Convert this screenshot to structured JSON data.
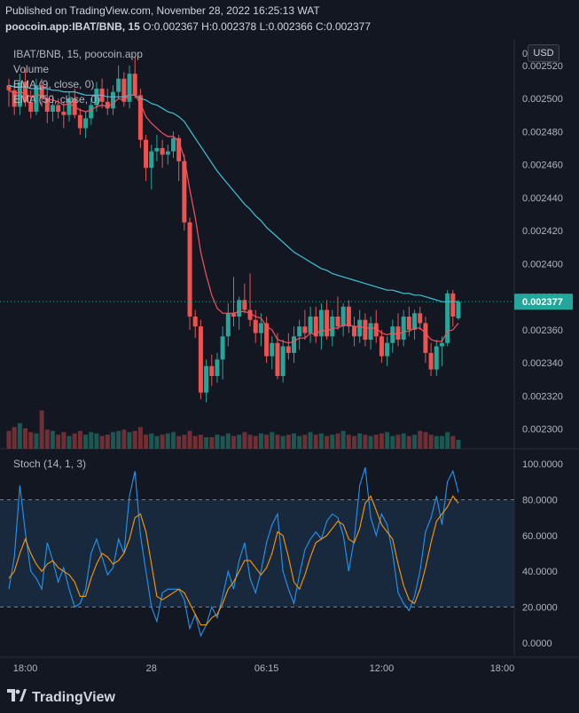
{
  "header": {
    "published": "Published on TradingView.com, November 28, 2022 16:25:13 WAT",
    "symbol_full": "poocoin.app:IBAT/BNB, 15",
    "ohlc": "O:0.002367 H:0.002378 L:0.002366 C:0.002377"
  },
  "legend": {
    "title": "IBAT/BNB, 15, poocoin.app",
    "volume": "Volume",
    "ema9": "EMA (9, close, 0)",
    "ema50": "EMA (50, close, 0)",
    "stoch": "Stoch (14, 1, 3)"
  },
  "currency_button": "USD",
  "price_tag": "0.002377",
  "footer": {
    "brand": "TradingView"
  },
  "colors": {
    "background": "#131722",
    "up": "#26a69a",
    "down": "#ef5350",
    "ema9": "#f7525f",
    "ema50": "#40c4d8",
    "stoch_k": "#2196f3",
    "stoch_d": "#ff9800",
    "stoch_band": "#1e3550"
  },
  "chart_data": [
    {
      "type": "candlestick",
      "title": "IBAT/BNB, 15, poocoin.app",
      "y_ticks": [
        "0",
        "0.002520",
        "0.002500",
        "0.002480",
        "0.002460",
        "0.002440",
        "0.002420",
        "0.002400",
        "0.002380",
        "0.002360",
        "0.002340",
        "0.002320",
        "0.002300"
      ],
      "ylim": [
        0.002288,
        0.002536
      ],
      "x_ticks": [
        "18:00",
        "28",
        "06:15",
        "12:00",
        "18:00"
      ],
      "last_price": 0.002377,
      "candles": [
        [
          0.002508,
          0.002512,
          0.002495,
          0.002505
        ],
        [
          0.002505,
          0.00251,
          0.00249,
          0.002495
        ],
        [
          0.002495,
          0.002515,
          0.00249,
          0.00251
        ],
        [
          0.00251,
          0.002518,
          0.002495,
          0.002498
        ],
        [
          0.002498,
          0.002505,
          0.002488,
          0.002492
        ],
        [
          0.002492,
          0.002512,
          0.00249,
          0.002508
        ],
        [
          0.002508,
          0.002512,
          0.002495,
          0.0025
        ],
        [
          0.0025,
          0.002508,
          0.002485,
          0.002492
        ],
        [
          0.002492,
          0.002502,
          0.002486,
          0.002496
        ],
        [
          0.002496,
          0.0025,
          0.002488,
          0.002492
        ],
        [
          0.002492,
          0.002498,
          0.002482,
          0.00249
        ],
        [
          0.00249,
          0.002504,
          0.002486,
          0.0025
        ],
        [
          0.0025,
          0.002506,
          0.002488,
          0.00249
        ],
        [
          0.00249,
          0.002494,
          0.002478,
          0.002482
        ],
        [
          0.002482,
          0.002492,
          0.002476,
          0.002488
        ],
        [
          0.002488,
          0.0025,
          0.002484,
          0.002496
        ],
        [
          0.002496,
          0.00251,
          0.002492,
          0.002506
        ],
        [
          0.002506,
          0.002512,
          0.002494,
          0.002498
        ],
        [
          0.002498,
          0.002506,
          0.00249,
          0.002494
        ],
        [
          0.002494,
          0.002508,
          0.00249,
          0.002504
        ],
        [
          0.002504,
          0.00252,
          0.0025,
          0.002512
        ],
        [
          0.002512,
          0.002516,
          0.002495,
          0.002498
        ],
        [
          0.002498,
          0.00252,
          0.002494,
          0.002515
        ],
        [
          0.002515,
          0.002525,
          0.0025,
          0.002502
        ],
        [
          0.002502,
          0.002506,
          0.00247,
          0.002475
        ],
        [
          0.002475,
          0.002478,
          0.00245,
          0.002458
        ],
        [
          0.002458,
          0.002472,
          0.002445,
          0.002468
        ],
        [
          0.002468,
          0.002478,
          0.002462,
          0.00247
        ],
        [
          0.00247,
          0.002475,
          0.002458,
          0.002466
        ],
        [
          0.002466,
          0.002472,
          0.00246,
          0.002468
        ],
        [
          0.002468,
          0.00248,
          0.002464,
          0.002476
        ],
        [
          0.002476,
          0.002478,
          0.00245,
          0.002462
        ],
        [
          0.002462,
          0.002466,
          0.00242,
          0.002425
        ],
        [
          0.002425,
          0.002428,
          0.00236,
          0.002368
        ],
        [
          0.002368,
          0.002372,
          0.002355,
          0.002362
        ],
        [
          0.002362,
          0.002366,
          0.002318,
          0.002322
        ],
        [
          0.002322,
          0.002342,
          0.002316,
          0.002338
        ],
        [
          0.002338,
          0.002345,
          0.002326,
          0.002332
        ],
        [
          0.002332,
          0.002346,
          0.002328,
          0.002342
        ],
        [
          0.002342,
          0.002362,
          0.00233,
          0.002356
        ],
        [
          0.002356,
          0.002376,
          0.00235,
          0.00237
        ],
        [
          0.00237,
          0.002392,
          0.002362,
          0.002368
        ],
        [
          0.002368,
          0.00238,
          0.00236,
          0.002378
        ],
        [
          0.002378,
          0.002388,
          0.00237,
          0.002372
        ],
        [
          0.002372,
          0.002394,
          0.002362,
          0.002366
        ],
        [
          0.002366,
          0.002372,
          0.002352,
          0.002358
        ],
        [
          0.002358,
          0.00237,
          0.00235,
          0.002364
        ],
        [
          0.002364,
          0.002368,
          0.00234,
          0.002344
        ],
        [
          0.002344,
          0.002356,
          0.002336,
          0.002352
        ],
        [
          0.002352,
          0.002358,
          0.00233,
          0.002332
        ],
        [
          0.002332,
          0.002354,
          0.002328,
          0.00235
        ],
        [
          0.00235,
          0.002358,
          0.002342,
          0.002346
        ],
        [
          0.002346,
          0.002362,
          0.00234,
          0.002356
        ],
        [
          0.002356,
          0.002366,
          0.002348,
          0.002362
        ],
        [
          0.002362,
          0.002372,
          0.002354,
          0.002358
        ],
        [
          0.002358,
          0.002374,
          0.002352,
          0.002368
        ],
        [
          0.002368,
          0.002374,
          0.002352,
          0.002356
        ],
        [
          0.002356,
          0.002376,
          0.002348,
          0.002372
        ],
        [
          0.002372,
          0.002378,
          0.002354,
          0.002356
        ],
        [
          0.002356,
          0.002372,
          0.00235,
          0.002368
        ],
        [
          0.002368,
          0.00238,
          0.00236,
          0.002362
        ],
        [
          0.002362,
          0.002376,
          0.002356,
          0.002374
        ],
        [
          0.002374,
          0.002378,
          0.002358,
          0.002362
        ],
        [
          0.002362,
          0.002368,
          0.00235,
          0.002356
        ],
        [
          0.002356,
          0.002372,
          0.002352,
          0.002366
        ],
        [
          0.002366,
          0.00237,
          0.00235,
          0.002354
        ],
        [
          0.002354,
          0.002368,
          0.002348,
          0.002364
        ],
        [
          0.002364,
          0.002372,
          0.002352,
          0.002356
        ],
        [
          0.002356,
          0.00236,
          0.00234,
          0.002344
        ],
        [
          0.002344,
          0.002356,
          0.002338,
          0.002352
        ],
        [
          0.002352,
          0.002366,
          0.002346,
          0.002362
        ],
        [
          0.002362,
          0.00237,
          0.00235,
          0.002354
        ],
        [
          0.002354,
          0.002372,
          0.00235,
          0.002368
        ],
        [
          0.002368,
          0.002374,
          0.002356,
          0.00236
        ],
        [
          0.00236,
          0.002372,
          0.002354,
          0.00237
        ],
        [
          0.00237,
          0.002374,
          0.00236,
          0.002364
        ],
        [
          0.002364,
          0.002368,
          0.00234,
          0.002346
        ],
        [
          0.002346,
          0.002352,
          0.002332,
          0.002336
        ],
        [
          0.002336,
          0.002354,
          0.002332,
          0.00235
        ],
        [
          0.00235,
          0.002356,
          0.002338,
          0.002352
        ],
        [
          0.002352,
          0.002384,
          0.00235,
          0.002382
        ],
        [
          0.002382,
          0.002384,
          0.002362,
          0.002368
        ],
        [
          0.002367,
          0.002378,
          0.002366,
          0.002377
        ]
      ],
      "volume": [
        28,
        34,
        40,
        32,
        26,
        24,
        60,
        30,
        28,
        22,
        26,
        20,
        24,
        28,
        22,
        26,
        24,
        20,
        22,
        26,
        28,
        30,
        26,
        28,
        34,
        22,
        24,
        20,
        22,
        24,
        26,
        20,
        22,
        28,
        20,
        22,
        18,
        18,
        22,
        20,
        24,
        20,
        22,
        26,
        22,
        20,
        24,
        22,
        26,
        22,
        20,
        22,
        24,
        20,
        22,
        26,
        22,
        24,
        20,
        22,
        24,
        28,
        22,
        20,
        24,
        22,
        20,
        22,
        24,
        26,
        20,
        22,
        24,
        20,
        22,
        28,
        26,
        22,
        20,
        20,
        26,
        20,
        14
      ],
      "ema9": [
        0.002505,
        0.002503,
        0.002504,
        0.002503,
        0.002501,
        0.002502,
        0.002502,
        0.0025,
        0.002499,
        0.002498,
        0.002496,
        0.002497,
        0.002495,
        0.002493,
        0.002492,
        0.002493,
        0.002495,
        0.002496,
        0.002495,
        0.002497,
        0.0025,
        0.002499,
        0.002502,
        0.002502,
        0.002497,
        0.002489,
        0.002485,
        0.002482,
        0.002479,
        0.002477,
        0.002477,
        0.002474,
        0.002464,
        0.002445,
        0.002428,
        0.002407,
        0.002393,
        0.002381,
        0.002373,
        0.00237,
        0.00237,
        0.00237,
        0.002371,
        0.002371,
        0.00237,
        0.002368,
        0.002367,
        0.002362,
        0.00236,
        0.002354,
        0.002353,
        0.002352,
        0.002353,
        0.002355,
        0.002355,
        0.002358,
        0.002357,
        0.00236,
        0.002359,
        0.002361,
        0.002361,
        0.002363,
        0.002363,
        0.002362,
        0.002362,
        0.002361,
        0.002361,
        0.002361,
        0.002358,
        0.002357,
        0.002358,
        0.002357,
        0.002359,
        0.002359,
        0.002361,
        0.002361,
        0.002358,
        0.002354,
        0.002353,
        0.002353,
        0.002359,
        0.00236,
        0.002364
      ],
      "ema50": [
        0.002508,
        0.002507,
        0.002507,
        0.002507,
        0.002506,
        0.002506,
        0.002506,
        0.002506,
        0.002505,
        0.002505,
        0.002504,
        0.002504,
        0.002504,
        0.002503,
        0.002502,
        0.002502,
        0.002502,
        0.002502,
        0.002501,
        0.002501,
        0.002501,
        0.002501,
        0.002502,
        0.002502,
        0.0025,
        0.002499,
        0.002497,
        0.002496,
        0.002494,
        0.002492,
        0.002491,
        0.002489,
        0.002486,
        0.002481,
        0.002476,
        0.002471,
        0.002466,
        0.002461,
        0.002456,
        0.002452,
        0.002448,
        0.002444,
        0.00244,
        0.002436,
        0.002433,
        0.002429,
        0.002426,
        0.002422,
        0.002419,
        0.002416,
        0.002413,
        0.00241,
        0.002407,
        0.002405,
        0.002403,
        0.002401,
        0.002399,
        0.002397,
        0.002396,
        0.002394,
        0.002393,
        0.002392,
        0.002391,
        0.00239,
        0.002389,
        0.002388,
        0.002387,
        0.002386,
        0.002385,
        0.002384,
        0.002384,
        0.002383,
        0.002382,
        0.002382,
        0.002381,
        0.002381,
        0.00238,
        0.002379,
        0.002378,
        0.002377,
        0.002377,
        0.002377,
        0.002377
      ]
    },
    {
      "type": "line",
      "title": "Stoch (14, 1, 3)",
      "y_ticks": [
        "100.0000",
        "80.0000",
        "60.0000",
        "40.0000",
        "20.0000",
        "0.0000"
      ],
      "ylim": [
        -8,
        108
      ],
      "bands": [
        20,
        80
      ],
      "series": [
        {
          "name": "%K",
          "values": [
            30,
            48,
            88,
            62,
            40,
            36,
            30,
            56,
            46,
            34,
            42,
            30,
            20,
            22,
            30,
            50,
            58,
            48,
            38,
            42,
            58,
            50,
            82,
            96,
            60,
            40,
            20,
            12,
            28,
            30,
            30,
            30,
            24,
            8,
            16,
            4,
            10,
            20,
            14,
            26,
            40,
            30,
            46,
            56,
            36,
            28,
            40,
            56,
            66,
            72,
            40,
            30,
            22,
            38,
            52,
            58,
            62,
            58,
            68,
            72,
            70,
            60,
            40,
            58,
            88,
            98,
            70,
            60,
            72,
            66,
            50,
            28,
            22,
            18,
            26,
            40,
            62,
            70,
            82,
            66,
            90,
            96,
            84
          ]
        },
        {
          "name": "%D",
          "values": [
            36,
            40,
            50,
            58,
            50,
            44,
            40,
            44,
            46,
            42,
            40,
            38,
            34,
            26,
            26,
            36,
            44,
            50,
            48,
            44,
            46,
            50,
            58,
            70,
            72,
            62,
            44,
            26,
            24,
            26,
            28,
            30,
            28,
            22,
            16,
            10,
            10,
            14,
            16,
            22,
            30,
            34,
            40,
            46,
            46,
            42,
            38,
            42,
            50,
            62,
            60,
            48,
            34,
            30,
            38,
            48,
            56,
            58,
            60,
            64,
            68,
            66,
            58,
            56,
            64,
            78,
            82,
            74,
            66,
            62,
            58,
            44,
            32,
            24,
            22,
            30,
            42,
            56,
            68,
            72,
            76,
            82,
            78
          ]
        }
      ]
    }
  ]
}
